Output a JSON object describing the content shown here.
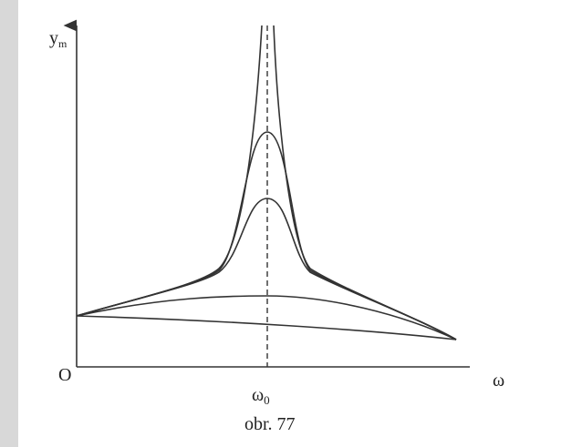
{
  "figure": {
    "y_axis_label": {
      "base": "y",
      "sub": "m"
    },
    "origin_label": "O",
    "resonance_label": {
      "base": "ω",
      "sub": "0"
    },
    "x_axis_label": "ω",
    "caption": "obr. 77"
  }
}
